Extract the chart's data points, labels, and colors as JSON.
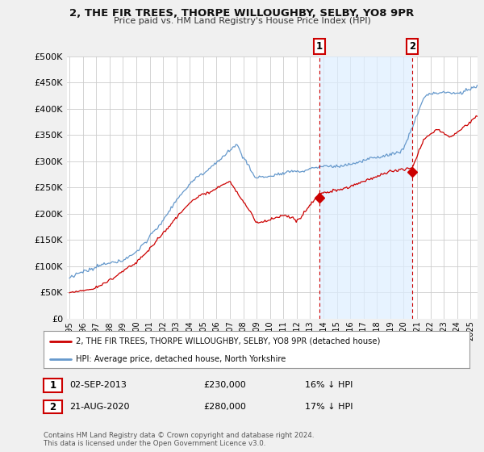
{
  "title": "2, THE FIR TREES, THORPE WILLOUGHBY, SELBY, YO8 9PR",
  "subtitle": "Price paid vs. HM Land Registry's House Price Index (HPI)",
  "legend_line1": "2, THE FIR TREES, THORPE WILLOUGHBY, SELBY, YO8 9PR (detached house)",
  "legend_line2": "HPI: Average price, detached house, North Yorkshire",
  "annotation1_date": "02-SEP-2013",
  "annotation1_price": "£230,000",
  "annotation1_hpi": "16% ↓ HPI",
  "annotation2_date": "21-AUG-2020",
  "annotation2_price": "£280,000",
  "annotation2_hpi": "17% ↓ HPI",
  "footnote": "Contains HM Land Registry data © Crown copyright and database right 2024.\nThis data is licensed under the Open Government Licence v3.0.",
  "hpi_color": "#6699cc",
  "price_color": "#cc0000",
  "vline_color": "#cc0000",
  "shade_color": "#ddeeff",
  "background_color": "#f0f0f0",
  "plot_bg_color": "#ffffff",
  "ylim": [
    0,
    500000
  ],
  "xlim_left": 1994.8,
  "xlim_right": 2025.5,
  "sale1_year": 2013.67,
  "sale1_price": 230000,
  "sale2_year": 2020.63,
  "sale2_price": 280000
}
